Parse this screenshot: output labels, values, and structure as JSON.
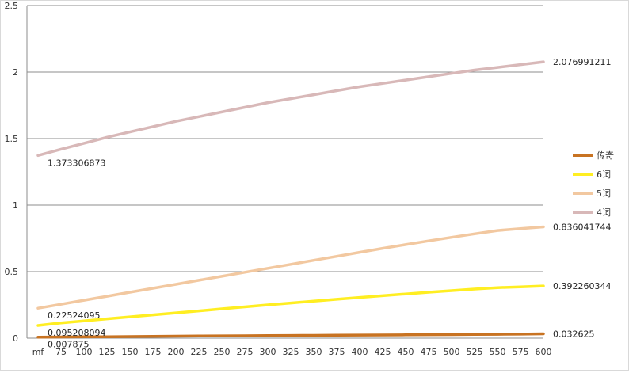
{
  "chart_data": {
    "type": "line",
    "title": "",
    "xlabel": "",
    "ylabel": "",
    "categories": [
      "mf",
      "75",
      "100",
      "125",
      "150",
      "175",
      "200",
      "225",
      "250",
      "275",
      "300",
      "325",
      "350",
      "375",
      "400",
      "425",
      "450",
      "475",
      "500",
      "525",
      "550",
      "575",
      "600"
    ],
    "ylim": [
      0,
      2.5
    ],
    "yticks": [
      "0",
      "0.5",
      "1",
      "1.5",
      "2",
      "2.5"
    ],
    "grid": true,
    "legend_position": "right",
    "series": [
      {
        "name": "传奇",
        "color": "#c87322",
        "values": [
          0.007875,
          0.009,
          0.01,
          0.011,
          0.012,
          0.013,
          0.015,
          0.016,
          0.017,
          0.018,
          0.019,
          0.02,
          0.021,
          0.022,
          0.023,
          0.024,
          0.025,
          0.026,
          0.027,
          0.028,
          0.029,
          0.0305,
          0.032625
        ],
        "label_first": "0.007875",
        "label_last": "0.032625"
      },
      {
        "name": "6词",
        "color": "#ffee22",
        "values": [
          0.095208094,
          0.115,
          0.13,
          0.145,
          0.16,
          0.175,
          0.19,
          0.205,
          0.22,
          0.235,
          0.25,
          0.264,
          0.278,
          0.292,
          0.306,
          0.319,
          0.332,
          0.345,
          0.357,
          0.369,
          0.38,
          0.386,
          0.392260344
        ],
        "label_first": "0.095208094",
        "label_last": "0.392260344"
      },
      {
        "name": "5词",
        "color": "#f2c8a0",
        "values": [
          0.22524095,
          0.255,
          0.285,
          0.315,
          0.345,
          0.375,
          0.405,
          0.435,
          0.465,
          0.495,
          0.525,
          0.555,
          0.585,
          0.615,
          0.645,
          0.675,
          0.703,
          0.731,
          0.758,
          0.784,
          0.809,
          0.823,
          0.836041744
        ],
        "label_first": "0.22524095",
        "label_last": "0.836041744"
      },
      {
        "name": "4词",
        "color": "#d8b8b8",
        "values": [
          1.373306873,
          1.42,
          1.465,
          1.51,
          1.55,
          1.59,
          1.63,
          1.665,
          1.7,
          1.735,
          1.77,
          1.8,
          1.83,
          1.86,
          1.89,
          1.915,
          1.94,
          1.965,
          1.99,
          2.015,
          2.035,
          2.056,
          2.076991211
        ],
        "label_first": "1.373306873",
        "label_last": "2.076991211"
      }
    ]
  }
}
